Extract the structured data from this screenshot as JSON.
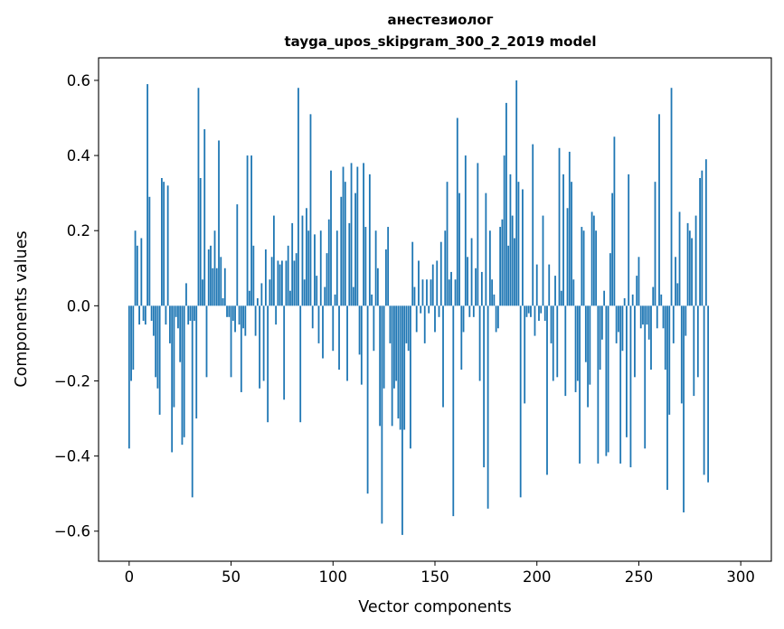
{
  "chart_data": {
    "type": "bar",
    "title_line1": "анестезиолог",
    "title_line2": "tayga_upos_skipgram_300_2_2019 model",
    "xlabel": "Vector components",
    "ylabel": "Components values",
    "xlim": [
      -15,
      315
    ],
    "ylim": [
      -0.68,
      0.66
    ],
    "x_ticks": [
      0,
      50,
      100,
      150,
      200,
      250,
      300
    ],
    "x_tick_labels": [
      "0",
      "50",
      "100",
      "150",
      "200",
      "250",
      "300"
    ],
    "y_ticks": [
      -0.6,
      -0.4,
      -0.2,
      0.0,
      0.2,
      0.4,
      0.6
    ],
    "y_tick_labels": [
      "−0.6",
      "−0.4",
      "−0.2",
      "0.0",
      "0.2",
      "0.4",
      "0.6"
    ],
    "bar_color": "#1f77b4",
    "values": [
      -0.38,
      -0.2,
      -0.17,
      0.2,
      0.16,
      -0.05,
      0.18,
      -0.04,
      -0.05,
      0.59,
      0.29,
      -0.04,
      -0.08,
      -0.19,
      -0.22,
      -0.29,
      0.34,
      0.33,
      -0.05,
      0.32,
      -0.1,
      -0.39,
      -0.27,
      -0.03,
      -0.06,
      -0.15,
      -0.37,
      -0.35,
      0.06,
      -0.05,
      -0.04,
      -0.51,
      -0.04,
      -0.3,
      0.58,
      0.34,
      0.07,
      0.47,
      -0.19,
      0.15,
      0.16,
      0.1,
      0.2,
      0.1,
      0.44,
      0.13,
      0.02,
      0.1,
      -0.03,
      -0.03,
      -0.19,
      -0.04,
      -0.07,
      0.27,
      -0.05,
      -0.23,
      -0.06,
      -0.08,
      0.4,
      0.04,
      0.4,
      0.16,
      -0.08,
      0.02,
      -0.22,
      0.06,
      -0.2,
      0.15,
      -0.31,
      0.07,
      0.13,
      0.24,
      -0.05,
      0.12,
      0.11,
      0.12,
      -0.25,
      0.12,
      0.16,
      0.04,
      0.22,
      0.12,
      0.14,
      0.58,
      -0.31,
      0.24,
      0.07,
      0.26,
      0.2,
      0.51,
      -0.06,
      0.19,
      0.08,
      -0.1,
      0.2,
      -0.14,
      0.05,
      0.14,
      0.23,
      0.36,
      -0.12,
      0.03,
      0.2,
      -0.17,
      0.29,
      0.37,
      0.33,
      -0.2,
      0.22,
      0.38,
      0.05,
      0.3,
      0.37,
      -0.13,
      -0.21,
      0.38,
      0.21,
      -0.5,
      0.35,
      0.03,
      -0.12,
      0.2,
      0.1,
      -0.32,
      -0.58,
      -0.22,
      0.15,
      0.21,
      -0.1,
      -0.32,
      -0.22,
      -0.2,
      -0.3,
      -0.33,
      -0.61,
      -0.33,
      -0.1,
      -0.12,
      -0.38,
      0.17,
      0.05,
      -0.07,
      0.12,
      -0.02,
      0.07,
      -0.1,
      0.07,
      -0.02,
      0.07,
      0.11,
      -0.07,
      0.12,
      -0.03,
      0.17,
      -0.27,
      0.2,
      0.33,
      0.07,
      0.09,
      -0.56,
      0.07,
      0.5,
      0.3,
      -0.17,
      -0.07,
      0.4,
      0.13,
      -0.03,
      0.18,
      -0.03,
      0.1,
      0.38,
      -0.2,
      0.09,
      -0.43,
      0.3,
      -0.54,
      0.2,
      0.07,
      0.03,
      -0.07,
      -0.06,
      0.21,
      0.23,
      0.4,
      0.54,
      0.16,
      0.35,
      0.24,
      0.18,
      0.6,
      0.33,
      -0.51,
      0.31,
      -0.26,
      -0.03,
      -0.02,
      -0.03,
      0.43,
      -0.08,
      0.11,
      -0.04,
      -0.02,
      0.24,
      -0.04,
      -0.45,
      0.11,
      -0.1,
      -0.2,
      0.08,
      -0.19,
      0.42,
      0.04,
      0.35,
      -0.24,
      0.26,
      0.41,
      0.33,
      0.07,
      -0.23,
      -0.2,
      -0.42,
      0.21,
      0.2,
      -0.15,
      -0.27,
      -0.21,
      0.25,
      0.24,
      0.2,
      -0.42,
      -0.17,
      -0.09,
      0.04,
      -0.4,
      -0.39,
      0.14,
      0.3,
      0.45,
      -0.1,
      -0.07,
      -0.42,
      -0.12,
      0.02,
      -0.35,
      0.35,
      -0.43,
      0.03,
      -0.19,
      0.08,
      0.13,
      -0.06,
      -0.05,
      -0.38,
      -0.05,
      -0.09,
      -0.17,
      0.05,
      0.33,
      -0.06,
      0.51,
      0.03,
      -0.06,
      -0.17,
      -0.49,
      -0.29,
      0.58,
      -0.1,
      0.13,
      0.06,
      0.25,
      -0.26,
      -0.55,
      -0.08,
      0.22,
      0.2,
      0.18,
      -0.24,
      0.24,
      -0.19,
      0.34,
      0.36,
      -0.45,
      0.39,
      -0.47
    ]
  }
}
